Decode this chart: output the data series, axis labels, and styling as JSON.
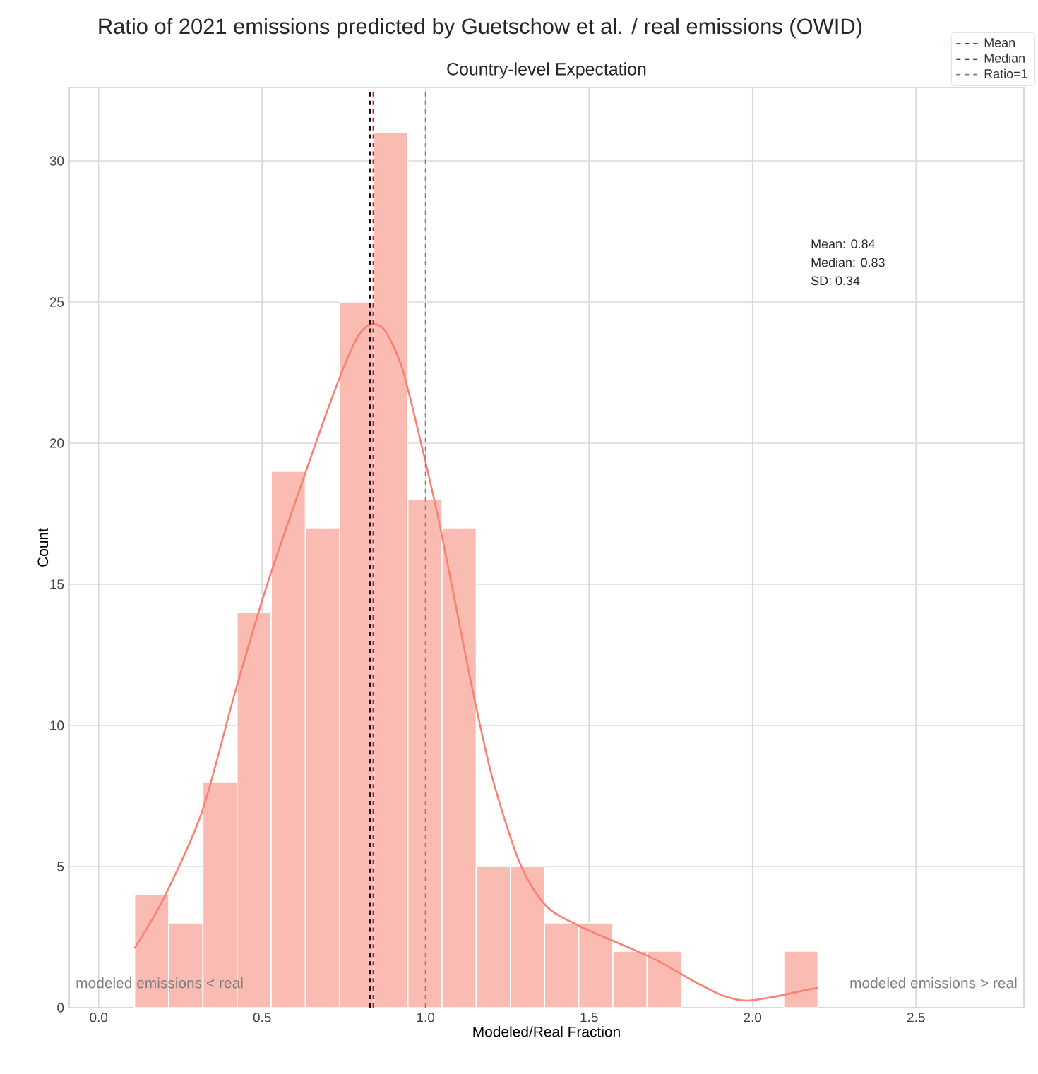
{
  "chart_data": {
    "type": "histogram",
    "title": "Ratio of 2021 emissions predicted by Guetschow et al. / real emissions (OWID)",
    "subtitle": "Country-level Expectation",
    "xlabel": "Modeled/Real Fraction",
    "ylabel": "Count",
    "bins": [
      0.11,
      0.2145,
      0.319,
      0.4235,
      0.528,
      0.6325,
      0.737,
      0.8415,
      0.946,
      1.0505,
      1.155,
      1.2595,
      1.364,
      1.4685,
      1.573,
      1.6775,
      1.782,
      1.8865,
      1.991,
      2.0955,
      2.2
    ],
    "values": [
      4,
      3,
      8,
      14,
      19,
      17,
      25,
      31,
      18,
      17,
      5,
      5,
      3,
      3,
      2,
      2,
      0,
      0,
      0,
      2
    ],
    "color": "#fabbb3",
    "series": [
      {
        "type": "line",
        "color": "#fa8072",
        "x": [
          0.11,
          0.2,
          0.315,
          0.418,
          0.513,
          0.616,
          0.72,
          0.789,
          0.832,
          0.875,
          0.927,
          0.978,
          1.047,
          1.134,
          1.203,
          1.289,
          1.369,
          1.469,
          1.597,
          1.711,
          1.826,
          1.911,
          1.983,
          2.069,
          2.169,
          2.2
        ],
        "values": [
          2.1,
          3.9,
          6.9,
          11.2,
          14.9,
          18.4,
          21.8,
          23.7,
          24.2,
          24.0,
          22.7,
          20.4,
          16.9,
          11.8,
          8.2,
          5.1,
          3.6,
          2.9,
          2.25,
          1.66,
          0.9,
          0.42,
          0.25,
          0.39,
          0.64,
          0.7
        ]
      }
    ],
    "xlim": [
      -0.09,
      2.83
    ],
    "ylim": [
      0,
      32.6
    ],
    "xticks": [
      {
        "value": 0,
        "label": "0.0"
      },
      0.5,
      {
        "value": 1,
        "label": "1.0"
      },
      1.5,
      {
        "value": 2,
        "label": "2.0"
      },
      2.5
    ],
    "yticks": [
      0,
      5,
      10,
      15,
      20,
      25,
      30
    ],
    "grid": true,
    "legend": "top right",
    "ref_lines": [
      {
        "axis": "x",
        "value": 0.84,
        "label": "Mean",
        "color": "#ff0000",
        "line_style": "dashed"
      },
      {
        "axis": "x",
        "value": 0.83,
        "label": "Median",
        "color": "#000000",
        "line_style": "dashed"
      },
      {
        "axis": "x",
        "value": 1,
        "label": "Ratio=1",
        "color": "#808080",
        "line_style": "dashed"
      }
    ],
    "annotations": [
      "Mean: 0.84",
      "Median: 0.83",
      "SD: 0.34",
      "modeled emissions < real",
      "modeled emissions > real"
    ]
  }
}
